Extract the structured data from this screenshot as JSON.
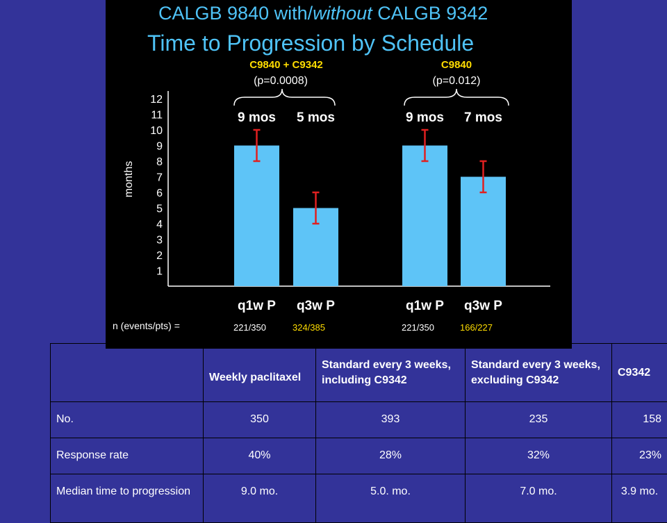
{
  "slide": {
    "title_line1_part1": "CALGB 9840 with/",
    "title_line1_italic": "without",
    "title_line1_part2": " CALGB 9342",
    "title_line2": "Time to Progression by Schedule",
    "y_axis_label": "months",
    "n_label": "n (events/pts) =",
    "groups": [
      {
        "label": "C9840 + C9342",
        "p_value": "(p=0.0008)"
      },
      {
        "label": "C9840",
        "p_value": "(p=0.012)"
      }
    ],
    "colors": {
      "bar": "#5ec4f7",
      "error_bar": "#e02020",
      "highlight": "#ffdd00",
      "title": "#4fc3f7",
      "background": "#000000"
    }
  },
  "chart_data": {
    "type": "bar",
    "ylabel": "months",
    "ylim": [
      0,
      12
    ],
    "yticks": [
      1,
      2,
      3,
      4,
      5,
      6,
      7,
      8,
      9,
      10,
      11,
      12
    ],
    "bars": [
      {
        "category": "q1w P",
        "value": 9,
        "err_low": 8,
        "err_high": 10,
        "value_label": "9 mos",
        "n": "221/350",
        "n_color": "#ffffff"
      },
      {
        "category": "q3w P",
        "value": 5,
        "err_low": 4,
        "err_high": 6,
        "value_label": "5 mos",
        "n": "324/385",
        "n_color": "#ffdd00"
      },
      {
        "category": "q1w P",
        "value": 9,
        "err_low": 8,
        "err_high": 10,
        "value_label": "9 mos",
        "n": "221/350",
        "n_color": "#ffffff"
      },
      {
        "category": "q3w P",
        "value": 7,
        "err_low": 6,
        "err_high": 8,
        "value_label": "7 mos",
        "n": "166/227",
        "n_color": "#ffdd00"
      }
    ]
  },
  "table": {
    "headers": [
      "",
      "Weekly paclitaxel",
      "Standard every 3 weeks, including C9342",
      "Standard every 3 weeks, excluding C9342",
      "C9342"
    ],
    "rows": [
      [
        "No.",
        "350",
        "393",
        "235",
        "158"
      ],
      [
        "Response rate",
        "40%",
        "28%",
        "32%",
        "23%"
      ],
      [
        "Median time to progression",
        "9.0 mo.",
        "5.0. mo.",
        "7.0 mo.",
        "3.9 mo."
      ]
    ]
  }
}
